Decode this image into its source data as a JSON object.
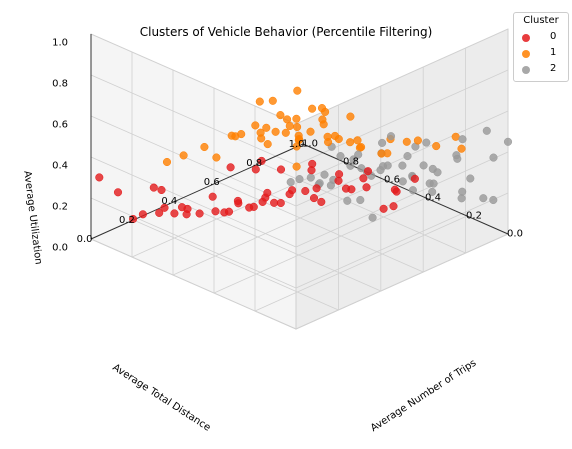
{
  "chart_data": {
    "type": "scatter3d",
    "title": "Clusters of Vehicle Behavior (Percentile Filtering)",
    "xlabel": "Average Total Distance",
    "ylabel": "Average Number of Trips",
    "zlabel": "Average Utilization",
    "xlim": [
      0.0,
      1.0
    ],
    "ylim": [
      0.0,
      1.0
    ],
    "zlim": [
      0.0,
      1.0
    ],
    "x_ticks": [
      "0.0",
      "0.2",
      "0.4",
      "0.6",
      "0.8",
      "1.0"
    ],
    "y_ticks": [
      "0.0",
      "0.2",
      "0.4",
      "0.6",
      "0.8",
      "1.0"
    ],
    "z_ticks": [
      "0.0",
      "0.2",
      "0.4",
      "0.6",
      "0.8",
      "1.0"
    ],
    "grid": true,
    "legend": {
      "title": "Cluster",
      "position": "top-right"
    },
    "series": [
      {
        "name": "0",
        "color": "#e41a1c",
        "points": [
          [
            0.55,
            0.85,
            0.1
          ],
          [
            0.62,
            0.8,
            0.08
          ],
          [
            0.7,
            0.75,
            0.12
          ],
          [
            0.48,
            0.7,
            0.15
          ],
          [
            0.58,
            0.68,
            0.05
          ],
          [
            0.66,
            0.62,
            0.1
          ],
          [
            0.74,
            0.58,
            0.07
          ],
          [
            0.52,
            0.6,
            0.18
          ],
          [
            0.6,
            0.55,
            0.14
          ],
          [
            0.68,
            0.5,
            0.09
          ],
          [
            0.78,
            0.48,
            0.06
          ],
          [
            0.45,
            0.52,
            0.2
          ],
          [
            0.55,
            0.46,
            0.16
          ],
          [
            0.64,
            0.42,
            0.12
          ],
          [
            0.72,
            0.38,
            0.08
          ],
          [
            0.82,
            0.4,
            0.1
          ],
          [
            0.5,
            0.38,
            0.22
          ],
          [
            0.58,
            0.34,
            0.18
          ],
          [
            0.66,
            0.3,
            0.14
          ],
          [
            0.76,
            0.28,
            0.1
          ],
          [
            0.86,
            0.32,
            0.06
          ],
          [
            0.62,
            0.22,
            0.2
          ],
          [
            0.72,
            0.18,
            0.16
          ],
          [
            0.8,
            0.2,
            0.12
          ],
          [
            0.9,
            0.25,
            0.08
          ],
          [
            0.95,
            0.15,
            0.05
          ],
          [
            0.85,
            0.1,
            0.14
          ],
          [
            0.75,
            0.08,
            0.2
          ],
          [
            0.92,
            0.05,
            0.24
          ],
          [
            0.98,
            0.02,
            0.3
          ],
          [
            0.4,
            0.8,
            0.04
          ],
          [
            0.44,
            0.9,
            0.06
          ],
          [
            0.5,
            0.95,
            0.02
          ],
          [
            0.6,
            0.92,
            0.08
          ],
          [
            0.7,
            0.88,
            0.04
          ],
          [
            0.8,
            0.85,
            0.06
          ],
          [
            0.88,
            0.78,
            0.03
          ],
          [
            0.92,
            0.7,
            0.05
          ],
          [
            0.96,
            0.62,
            0.08
          ],
          [
            0.84,
            0.65,
            0.15
          ],
          [
            0.35,
            0.6,
            0.25
          ],
          [
            0.38,
            0.7,
            0.2
          ],
          [
            0.42,
            0.45,
            0.28
          ],
          [
            0.46,
            0.3,
            0.3
          ],
          [
            0.54,
            0.25,
            0.26
          ],
          [
            0.68,
            0.12,
            0.24
          ],
          [
            0.78,
            0.12,
            0.28
          ],
          [
            0.88,
            0.18,
            0.22
          ],
          [
            0.3,
            0.75,
            0.12
          ],
          [
            0.33,
            0.88,
            0.18
          ]
        ]
      },
      {
        "name": "1",
        "color": "#ff7f00",
        "points": [
          [
            0.1,
            0.1,
            0.8
          ],
          [
            0.15,
            0.15,
            0.85
          ],
          [
            0.2,
            0.12,
            0.9
          ],
          [
            0.08,
            0.2,
            0.95
          ],
          [
            0.18,
            0.25,
            0.88
          ],
          [
            0.25,
            0.2,
            0.82
          ],
          [
            0.3,
            0.15,
            0.78
          ],
          [
            0.12,
            0.3,
            0.75
          ],
          [
            0.22,
            0.35,
            0.8
          ],
          [
            0.32,
            0.28,
            0.72
          ],
          [
            0.4,
            0.22,
            0.68
          ],
          [
            0.05,
            0.35,
            0.7
          ],
          [
            0.15,
            0.4,
            0.66
          ],
          [
            0.28,
            0.42,
            0.62
          ],
          [
            0.38,
            0.38,
            0.6
          ],
          [
            0.48,
            0.3,
            0.58
          ],
          [
            0.1,
            0.5,
            0.58
          ],
          [
            0.22,
            0.52,
            0.55
          ],
          [
            0.34,
            0.48,
            0.54
          ],
          [
            0.45,
            0.45,
            0.52
          ],
          [
            0.05,
            0.05,
            0.98
          ],
          [
            0.02,
            0.15,
            0.92
          ],
          [
            0.12,
            0.02,
            0.9
          ],
          [
            0.25,
            0.05,
            0.86
          ],
          [
            0.35,
            0.08,
            0.76
          ],
          [
            0.42,
            0.12,
            0.7
          ],
          [
            0.5,
            0.18,
            0.64
          ],
          [
            0.55,
            0.1,
            0.6
          ],
          [
            0.6,
            0.05,
            0.56
          ],
          [
            0.65,
            0.02,
            0.52
          ],
          [
            0.02,
            0.45,
            0.64
          ],
          [
            0.08,
            0.6,
            0.6
          ],
          [
            0.18,
            0.62,
            0.56
          ],
          [
            0.3,
            0.58,
            0.52
          ],
          [
            0.04,
            0.7,
            0.55
          ],
          [
            0.15,
            0.72,
            0.52
          ],
          [
            0.02,
            0.8,
            0.5
          ],
          [
            0.1,
            0.85,
            0.5
          ],
          [
            0.2,
            0.45,
            0.74
          ],
          [
            0.28,
            0.1,
            0.94
          ],
          [
            0.18,
            0.18,
            1.0
          ],
          [
            0.08,
            0.08,
            0.72
          ],
          [
            0.36,
            0.3,
            0.66
          ],
          [
            0.44,
            0.05,
            0.62
          ],
          [
            0.26,
            0.32,
            0.7
          ],
          [
            0.14,
            0.26,
            0.84
          ],
          [
            0.06,
            0.26,
            0.78
          ],
          [
            0.32,
            0.2,
            0.88
          ],
          [
            0.4,
            0.4,
            0.56
          ],
          [
            0.5,
            0.35,
            0.52
          ]
        ]
      },
      {
        "name": "2",
        "color": "#999999",
        "points": [
          [
            0.1,
            0.4,
            0.4
          ],
          [
            0.15,
            0.5,
            0.45
          ],
          [
            0.2,
            0.45,
            0.5
          ],
          [
            0.25,
            0.55,
            0.42
          ],
          [
            0.3,
            0.5,
            0.48
          ],
          [
            0.05,
            0.55,
            0.52
          ],
          [
            0.12,
            0.62,
            0.38
          ],
          [
            0.18,
            0.7,
            0.44
          ],
          [
            0.26,
            0.65,
            0.36
          ],
          [
            0.34,
            0.6,
            0.4
          ],
          [
            0.08,
            0.72,
            0.3
          ],
          [
            0.16,
            0.8,
            0.34
          ],
          [
            0.24,
            0.78,
            0.28
          ],
          [
            0.32,
            0.72,
            0.32
          ],
          [
            0.4,
            0.68,
            0.36
          ],
          [
            0.04,
            0.82,
            0.24
          ],
          [
            0.12,
            0.9,
            0.2
          ],
          [
            0.22,
            0.88,
            0.26
          ],
          [
            0.3,
            0.84,
            0.22
          ],
          [
            0.38,
            0.8,
            0.26
          ],
          [
            0.02,
            0.95,
            0.18
          ],
          [
            0.1,
            0.98,
            0.14
          ],
          [
            0.06,
            0.88,
            0.3
          ],
          [
            0.2,
            0.95,
            0.32
          ],
          [
            0.28,
            0.92,
            0.16
          ],
          [
            0.14,
            0.3,
            0.5
          ],
          [
            0.22,
            0.32,
            0.46
          ],
          [
            0.3,
            0.36,
            0.44
          ],
          [
            0.06,
            0.3,
            0.46
          ],
          [
            0.36,
            0.46,
            0.34
          ],
          [
            0.44,
            0.56,
            0.3
          ],
          [
            0.42,
            0.74,
            0.24
          ],
          [
            0.48,
            0.64,
            0.22
          ],
          [
            0.34,
            0.88,
            0.12
          ],
          [
            0.18,
            0.58,
            0.56
          ],
          [
            0.08,
            0.48,
            0.6
          ],
          [
            0.26,
            0.42,
            0.58
          ],
          [
            0.02,
            0.65,
            0.4
          ],
          [
            0.14,
            0.75,
            0.5
          ],
          [
            0.04,
            0.4,
            0.34
          ],
          [
            0.5,
            0.5,
            0.28
          ],
          [
            0.46,
            0.42,
            0.32
          ],
          [
            0.36,
            0.95,
            0.2
          ],
          [
            0.24,
            0.68,
            0.52
          ],
          [
            0.16,
            0.94,
            0.42
          ],
          [
            0.0,
            1.0,
            0.45
          ],
          [
            0.05,
            0.98,
            0.36
          ],
          [
            0.0,
            0.9,
            0.55
          ],
          [
            0.02,
            0.78,
            0.46
          ],
          [
            0.1,
            0.66,
            0.54
          ]
        ]
      }
    ]
  }
}
